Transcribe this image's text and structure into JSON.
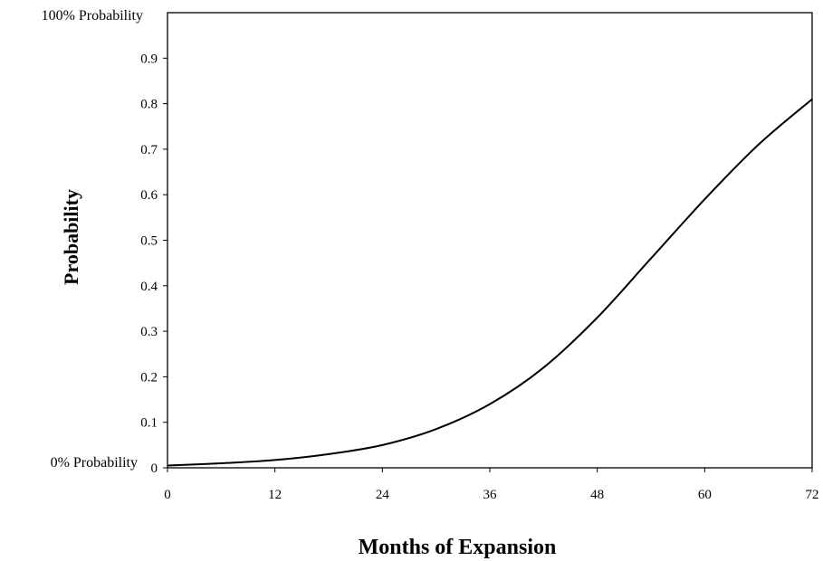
{
  "chart_data": {
    "type": "line",
    "xlabel": "Months of Expansion",
    "ylabel": "Probability",
    "xlim": [
      0,
      72
    ],
    "ylim": [
      0,
      1
    ],
    "x_ticks": [
      "0",
      "12",
      "24",
      "36",
      "48",
      "60",
      "72"
    ],
    "y_ticks": [
      "0",
      "0.1",
      "0.2",
      "0.3",
      "0.4",
      "0.5",
      "0.6",
      "0.7",
      "0.8",
      "0.9"
    ],
    "top_label": "100% Probability",
    "bottom_label": "0% Probability",
    "grid": false,
    "series": [
      {
        "x": [
          0,
          6,
          12,
          18,
          24,
          30,
          36,
          42,
          48,
          54,
          60,
          66,
          72
        ],
        "y": [
          0.005,
          0.01,
          0.017,
          0.03,
          0.05,
          0.085,
          0.14,
          0.22,
          0.33,
          0.46,
          0.59,
          0.71,
          0.81
        ]
      }
    ]
  }
}
